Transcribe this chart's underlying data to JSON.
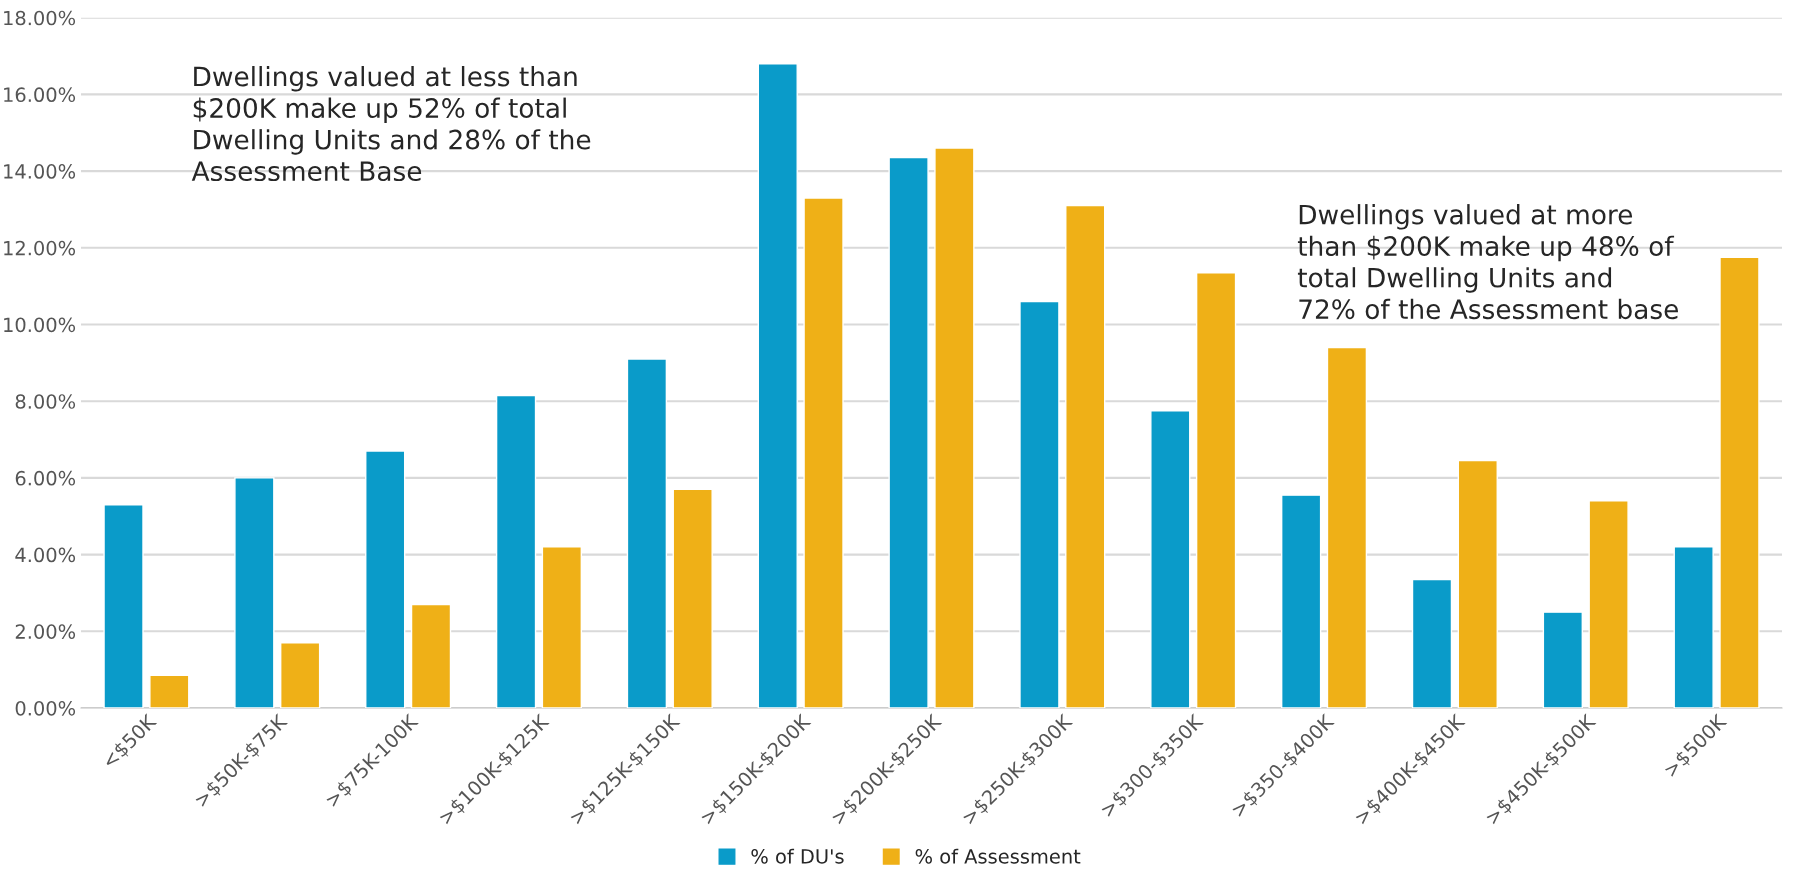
{
  "chart_data": {
    "type": "bar",
    "categories": [
      "<$50K",
      ">$50K-$75K",
      ">$75K-100K",
      ">$100K-$125K",
      ">$125K-$150K",
      ">$150K-$200K",
      ">$200K-$250K",
      ">$250K-$300K",
      ">$300-$350K",
      ">$350-$400K",
      ">$400K-$450K",
      ">$450K-$500K",
      ">$500K"
    ],
    "series": [
      {
        "name": "% of DU's",
        "color": "#0a9bc9",
        "values": [
          5.3,
          6.0,
          6.7,
          8.15,
          9.1,
          16.8,
          14.35,
          10.6,
          7.75,
          5.55,
          3.35,
          2.5,
          4.2
        ]
      },
      {
        "name": "% of Assessment",
        "color": "#efb017",
        "values": [
          0.85,
          1.7,
          2.7,
          4.2,
          5.7,
          13.3,
          14.6,
          13.1,
          11.35,
          9.4,
          6.45,
          5.4,
          11.75
        ]
      }
    ],
    "ylim": [
      0,
      18
    ],
    "yticks": [
      {
        "value": 0,
        "label": "0.00%"
      },
      {
        "value": 2,
        "label": "2.00%"
      },
      {
        "value": 4,
        "label": "4.00%"
      },
      {
        "value": 6,
        "label": "6.00%"
      },
      {
        "value": 8,
        "label": "8.00%"
      },
      {
        "value": 10,
        "label": "10.00%"
      },
      {
        "value": 12,
        "label": "12.00%"
      },
      {
        "value": 14,
        "label": "14.00%"
      },
      {
        "value": 16,
        "label": "16.00%"
      },
      {
        "value": 18,
        "label": "18.00%"
      }
    ],
    "grid": "y",
    "legend": "bottom",
    "annotations": [
      "Dwellings valued at less than\n$200K make up 52% of total\nDwelling Units and 28% of the\nAssessment Base",
      "Dwellings valued at more\nthan $200K make up 48% of\ntotal Dwelling Units and\n72% of the Assessment base"
    ]
  }
}
